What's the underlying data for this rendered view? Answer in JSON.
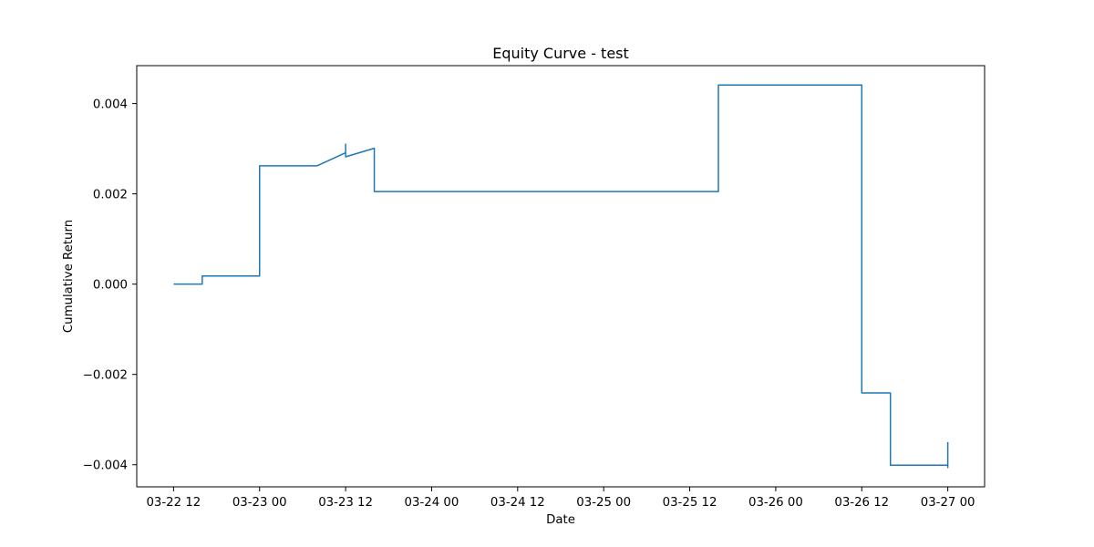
{
  "chart_data": {
    "type": "line",
    "title": "Equity Curve - test",
    "xlabel": "Date",
    "ylabel": "Cumulative Return",
    "grid": false,
    "legend": "none",
    "line_color": "#1f77b4",
    "xlim": [
      "2024-03-22 06:52",
      "2024-03-27 05:08"
    ],
    "ylim": [
      -0.00449,
      0.00484
    ],
    "x_ticks": [
      {
        "value": "2024-03-22 12:00",
        "label": "03-22 12"
      },
      {
        "value": "2024-03-23 00:00",
        "label": "03-23 00"
      },
      {
        "value": "2024-03-23 12:00",
        "label": "03-23 12"
      },
      {
        "value": "2024-03-24 00:00",
        "label": "03-24 00"
      },
      {
        "value": "2024-03-24 12:00",
        "label": "03-24 12"
      },
      {
        "value": "2024-03-25 00:00",
        "label": "03-25 00"
      },
      {
        "value": "2024-03-25 12:00",
        "label": "03-25 12"
      },
      {
        "value": "2024-03-26 00:00",
        "label": "03-26 00"
      },
      {
        "value": "2024-03-26 12:00",
        "label": "03-26 12"
      },
      {
        "value": "2024-03-27 00:00",
        "label": "03-27 00"
      }
    ],
    "y_ticks": [
      {
        "value": 0.004,
        "label": "0.004"
      },
      {
        "value": 0.002,
        "label": "0.002"
      },
      {
        "value": 0.0,
        "label": "0.000"
      },
      {
        "value": -0.002,
        "label": "−0.002"
      },
      {
        "value": -0.004,
        "label": "−0.004"
      }
    ],
    "series": [
      {
        "x": [
          "2024-03-22 12:00",
          "2024-03-22 16:00",
          "2024-03-22 16:00",
          "2024-03-23 00:00",
          "2024-03-23 00:00",
          "2024-03-23 08:00",
          "2024-03-23 12:00",
          "2024-03-23 12:00",
          "2024-03-23 12:00",
          "2024-03-23 16:00",
          "2024-03-23 16:00",
          "2024-03-25 16:00",
          "2024-03-25 16:00",
          "2024-03-26 12:00",
          "2024-03-26 12:00",
          "2024-03-26 16:00",
          "2024-03-26 16:00",
          "2024-03-27 00:00",
          "2024-03-27 00:00",
          "2024-03-27 00:00"
        ],
        "y": [
          0.0,
          0.0,
          0.00018,
          0.00018,
          0.00262,
          0.00262,
          0.00291,
          0.0031,
          0.00282,
          0.00301,
          0.00205,
          0.00205,
          0.00441,
          0.00441,
          -0.00241,
          -0.00241,
          -0.00401,
          -0.00401,
          -0.00406,
          -0.0035
        ]
      }
    ]
  }
}
